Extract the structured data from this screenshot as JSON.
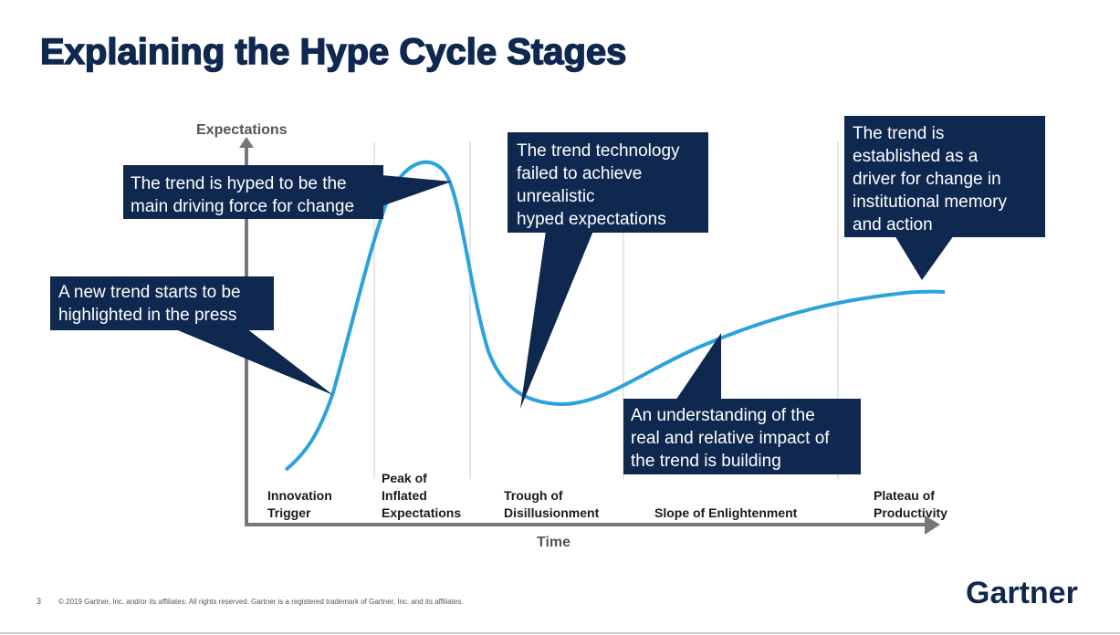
{
  "header": {
    "title": "Explaining the Hype Cycle Stages"
  },
  "axes": {
    "y_label": "Expectations",
    "x_label": "Time"
  },
  "stages": [
    {
      "lines": [
        "Innovation",
        "Trigger"
      ]
    },
    {
      "lines": [
        "Peak of",
        "Inflated",
        "Expectations"
      ]
    },
    {
      "lines": [
        "Trough of",
        "Disillusionment"
      ]
    },
    {
      "lines": [
        "Slope of Enlightenment"
      ]
    },
    {
      "lines": [
        "Plateau of",
        "Productivity"
      ]
    }
  ],
  "callouts": [
    {
      "lines": [
        "A new trend starts to be",
        "highlighted in the press"
      ]
    },
    {
      "lines": [
        "The trend is hyped to be the",
        "main driving force for change"
      ]
    },
    {
      "lines": [
        "The trend technology",
        "failed to achieve",
        "unrealistic",
        "hyped expectations"
      ]
    },
    {
      "lines": [
        "The trend is",
        "established as a",
        "driver for change in",
        "institutional memory",
        "and action"
      ]
    },
    {
      "lines": [
        "An understanding of the",
        "real and relative impact of",
        "the trend is building"
      ]
    }
  ],
  "footer": {
    "page": "3",
    "copyright": "© 2019 Gartner, Inc. and/or its affiliates. All rights reserved. Gartner is a registered trademark of Gartner, Inc. and its affiliates.",
    "logo": "Gartner"
  }
}
